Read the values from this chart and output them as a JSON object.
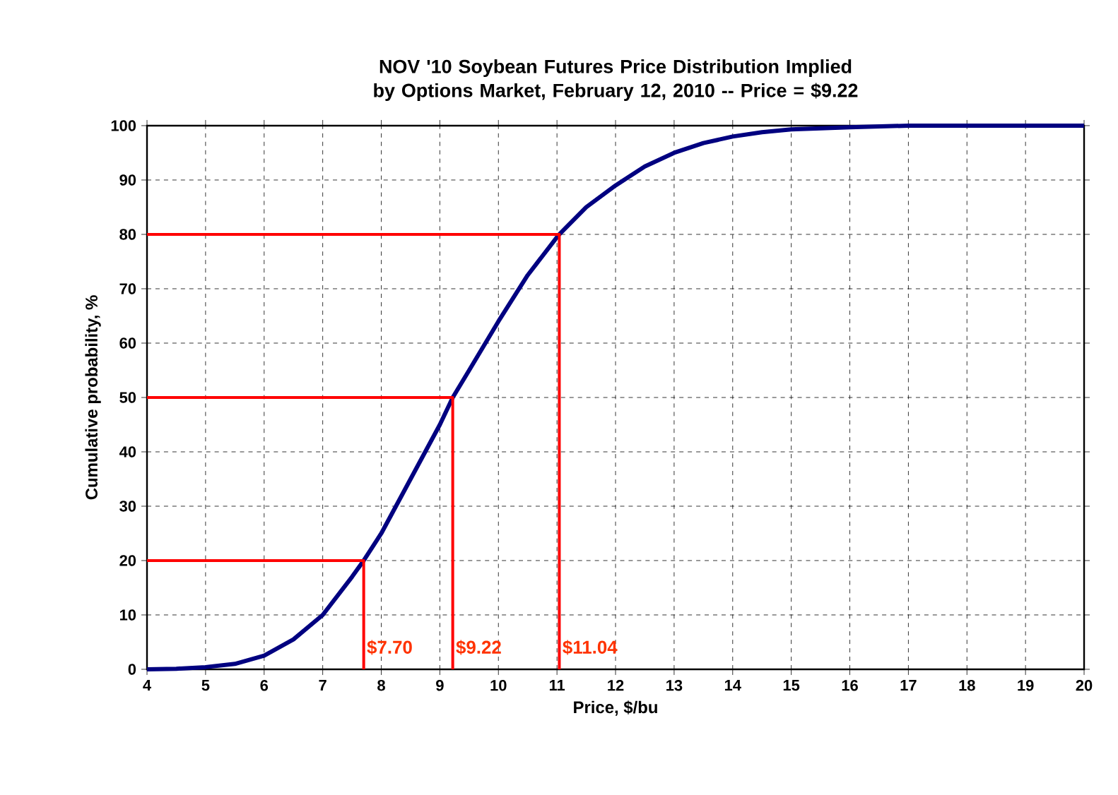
{
  "chart_data": {
    "type": "line",
    "title": "NOV '10 Soybean Futures Price Distribution Implied by Options Market, February 12, 2010 -- Price = $9.22",
    "xlabel": "Price, $/bu",
    "ylabel": "Cumulative probability, %",
    "xlim": [
      4,
      20
    ],
    "xticks": [
      4,
      5,
      6,
      7,
      8,
      9,
      10,
      11,
      12,
      13,
      14,
      15,
      16,
      17,
      18,
      19,
      20
    ],
    "ylim": [
      0,
      100
    ],
    "yticks": [
      0,
      10,
      20,
      30,
      40,
      50,
      60,
      70,
      80,
      90,
      100
    ],
    "grid": true,
    "series": [
      {
        "color": "#000080",
        "x": [
          4,
          4.5,
          5,
          5.5,
          6,
          6.5,
          7,
          7.5,
          7.7,
          8,
          8.5,
          9,
          9.22,
          9.5,
          10,
          10.5,
          11,
          11.04,
          11.5,
          12,
          12.5,
          13,
          13.5,
          14,
          14.5,
          15,
          16,
          17,
          18,
          19,
          20
        ],
        "values": [
          0,
          0.1,
          0.4,
          1,
          2.5,
          5.5,
          10,
          17,
          20,
          25,
          35,
          45,
          50,
          55,
          64,
          72.5,
          79.5,
          80,
          85,
          89,
          92.5,
          95,
          96.8,
          98,
          98.8,
          99.3,
          99.7,
          100,
          100,
          100,
          100
        ]
      },
      {
        "color": "#ff0000",
        "x": [
          4,
          7.7,
          7.7
        ],
        "values": [
          20,
          20,
          0
        ]
      },
      {
        "color": "#ff0000",
        "x": [
          4,
          9.22,
          9.22
        ],
        "values": [
          50,
          50,
          0
        ]
      },
      {
        "color": "#ff0000",
        "x": [
          4,
          11.04,
          11.04
        ],
        "values": [
          80,
          80,
          0
        ]
      }
    ],
    "annotations": [
      {
        "text": "$7.70",
        "x": 7.7,
        "y": 0
      },
      {
        "text": "$9.22",
        "x": 9.22,
        "y": 0
      },
      {
        "text": "$11.04",
        "x": 11.04,
        "y": 0
      }
    ]
  }
}
